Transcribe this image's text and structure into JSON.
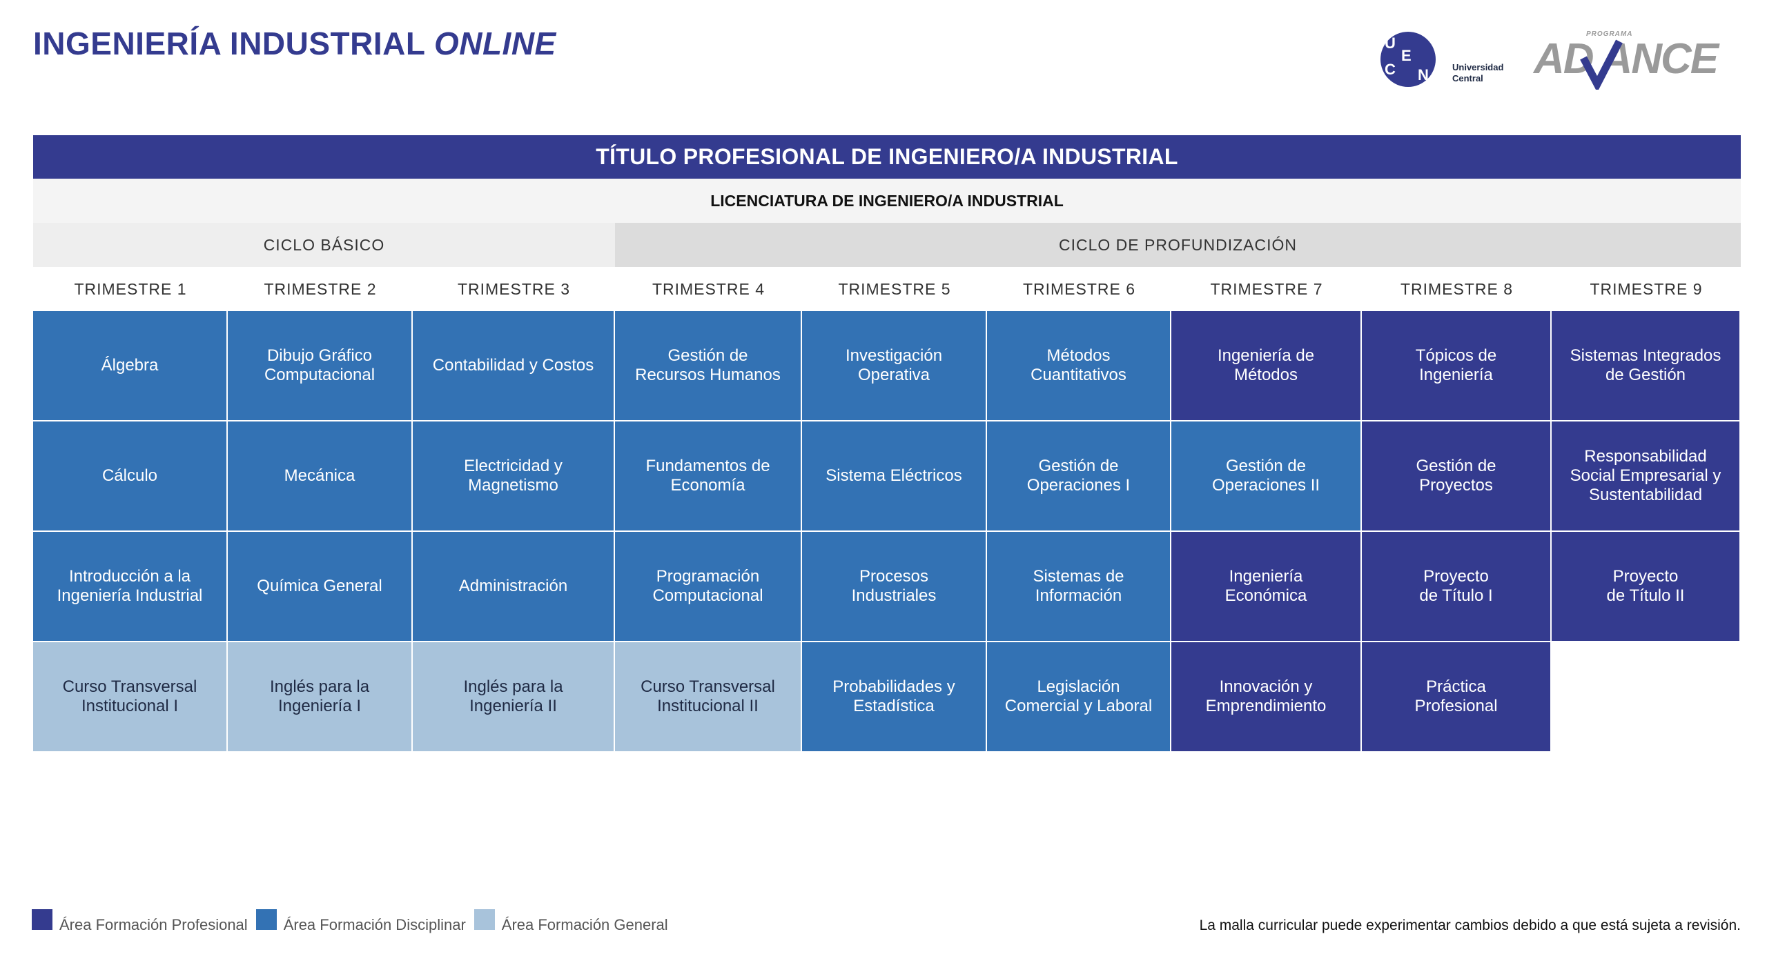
{
  "header": {
    "title_main": "INGENIERÍA INDUSTRIAL ",
    "title_em": "ONLINE",
    "ucen_letters": [
      "U",
      "C",
      "E",
      "N"
    ],
    "ucen_text_line1": "Universidad",
    "ucen_text_line2": "Central",
    "advance_program_label": "PROGRAMA",
    "advance_word": "AD ANCE"
  },
  "banner": "TÍTULO PROFESIONAL DE INGENIERO/A INDUSTRIAL",
  "license": "LICENCIATURA DE INGENIERO/A INDUSTRIAL",
  "cycles": {
    "basic": "CICLO BÁSICO",
    "deep": "CICLO DE PROFUNDIZACIÓN"
  },
  "trimesters": [
    "TRIMESTRE 1",
    "TRIMESTRE 2",
    "TRIMESTRE 3",
    "TRIMESTRE 4",
    "TRIMESTRE 5",
    "TRIMESTRE 6",
    "TRIMESTRE 7",
    "TRIMESTRE 8",
    "TRIMESTRE 9"
  ],
  "courses": [
    [
      {
        "text": "Álgebra",
        "area": "dis"
      },
      {
        "text": "Cálculo",
        "area": "dis"
      },
      {
        "text": "Introducción a la\nIngeniería Industrial",
        "area": "dis"
      },
      {
        "text": "Curso Transversal\nInstitucional I",
        "area": "gen"
      }
    ],
    [
      {
        "text": "Dibujo Gráfico\nComputacional",
        "area": "dis"
      },
      {
        "text": "Mecánica",
        "area": "dis"
      },
      {
        "text": "Química General",
        "area": "dis"
      },
      {
        "text": "Inglés para la\nIngeniería I",
        "area": "gen"
      }
    ],
    [
      {
        "text": "Contabilidad y Costos",
        "area": "dis"
      },
      {
        "text": "Electricidad y\nMagnetismo",
        "area": "dis"
      },
      {
        "text": "Administración",
        "area": "dis"
      },
      {
        "text": "Inglés para la\nIngeniería II",
        "area": "gen"
      }
    ],
    [
      {
        "text": "Gestión de\nRecursos Humanos",
        "area": "dis"
      },
      {
        "text": "Fundamentos de\nEconomía",
        "area": "dis"
      },
      {
        "text": "Programación\nComputacional",
        "area": "dis"
      },
      {
        "text": "Curso Transversal\nInstitucional II",
        "area": "gen"
      }
    ],
    [
      {
        "text": "Investigación\nOperativa",
        "area": "dis"
      },
      {
        "text": "Sistema Eléctricos",
        "area": "dis"
      },
      {
        "text": "Procesos\nIndustriales",
        "area": "dis"
      },
      {
        "text": "Probabilidades y\nEstadística",
        "area": "dis"
      }
    ],
    [
      {
        "text": "Métodos\nCuantitativos",
        "area": "dis"
      },
      {
        "text": "Gestión de\nOperaciones I",
        "area": "dis"
      },
      {
        "text": "Sistemas de\nInformación",
        "area": "dis"
      },
      {
        "text": "Legislación\nComercial y Laboral",
        "area": "dis"
      }
    ],
    [
      {
        "text": "Ingeniería de\nMétodos",
        "area": "pro"
      },
      {
        "text": "Gestión de\nOperaciones II",
        "area": "dis"
      },
      {
        "text": "Ingeniería\nEconómica",
        "area": "pro"
      },
      {
        "text": "Innovación y\nEmprendimiento",
        "area": "pro"
      }
    ],
    [
      {
        "text": "Tópicos de\nIngeniería",
        "area": "pro"
      },
      {
        "text": "Gestión de\nProyectos",
        "area": "pro"
      },
      {
        "text": "Proyecto\nde Título I",
        "area": "pro"
      },
      {
        "text": "Práctica\nProfesional",
        "area": "pro"
      }
    ],
    [
      {
        "text": "Sistemas Integrados\nde Gestión",
        "area": "pro"
      },
      {
        "text": "Responsabilidad\nSocial Empresarial y\nSustentabilidad",
        "area": "pro"
      },
      {
        "text": "Proyecto\nde Título II",
        "area": "pro"
      }
    ]
  ],
  "legend": [
    {
      "label": "Área Formación Profesional",
      "color": "#343b8f"
    },
    {
      "label": "Área Formación Disciplinar",
      "color": "#3372b4"
    },
    {
      "label": "Área Formación General",
      "color": "#a8c3db"
    }
  ],
  "footnote": "La malla curricular puede experimentar cambios debido a que está sujeta a revisión."
}
